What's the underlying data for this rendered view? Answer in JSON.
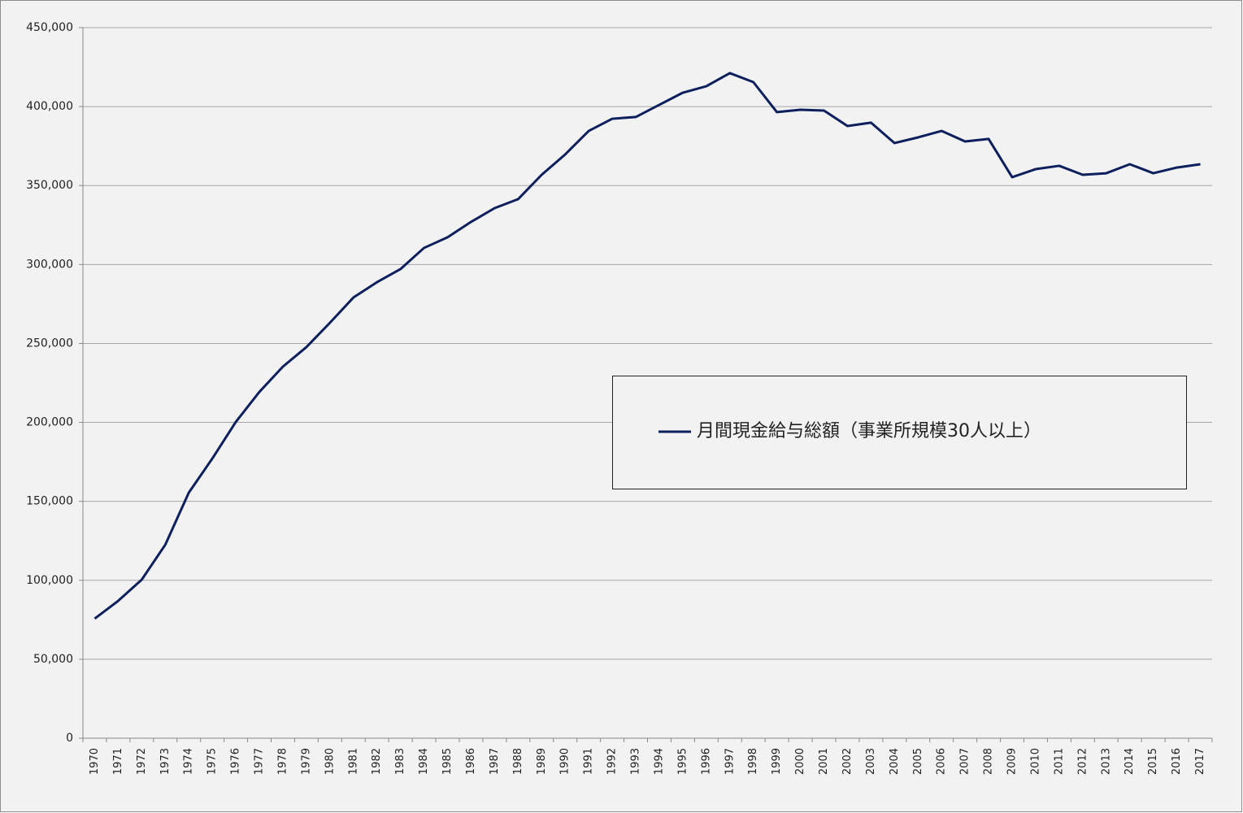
{
  "chart_data": {
    "type": "line",
    "categories": [
      "1970",
      "1971",
      "1972",
      "1973",
      "1974",
      "1975",
      "1976",
      "1977",
      "1978",
      "1979",
      "1980",
      "1981",
      "1982",
      "1983",
      "1984",
      "1985",
      "1986",
      "1987",
      "1988",
      "1989",
      "1990",
      "1991",
      "1992",
      "1993",
      "1994",
      "1995",
      "1996",
      "1997",
      "1998",
      "1999",
      "2000",
      "2001",
      "2002",
      "2003",
      "2004",
      "2005",
      "2006",
      "2007",
      "2008",
      "2009",
      "2010",
      "2011",
      "2012",
      "2013",
      "2014",
      "2015",
      "2016",
      "2017"
    ],
    "series": [
      {
        "name": "月間現金給与総額（事業所規模30人以上）",
        "color": "#0d1f5c",
        "values": [
          75700,
          87000,
          100400,
          122500,
          155500,
          177100,
          200300,
          219300,
          235300,
          247700,
          263100,
          279100,
          288800,
          297100,
          310500,
          317200,
          327000,
          335700,
          341400,
          356800,
          369700,
          384600,
          392300,
          393400,
          401100,
          408800,
          412900,
          421200,
          415500,
          396500,
          398000,
          397500,
          387700,
          389800,
          376900,
          380500,
          384600,
          377900,
          379500,
          355300,
          360400,
          362500,
          356800,
          357800,
          363500,
          357800,
          361400,
          363500
        ]
      }
    ],
    "ylim": [
      0,
      450000
    ],
    "yticks": [
      0,
      {
        "value": 50000,
        "label": "50,000"
      },
      {
        "value": 100000,
        "label": "100,000"
      },
      {
        "value": 150000,
        "label": "150,000"
      },
      {
        "value": 200000,
        "label": "200,000"
      },
      {
        "value": 250000,
        "label": "250,000"
      },
      {
        "value": 300000,
        "label": "300,000"
      },
      {
        "value": 350000,
        "label": "350,000"
      },
      {
        "value": 400000,
        "label": "400,000"
      },
      {
        "value": 450000,
        "label": "450,000"
      }
    ],
    "grid": true
  }
}
